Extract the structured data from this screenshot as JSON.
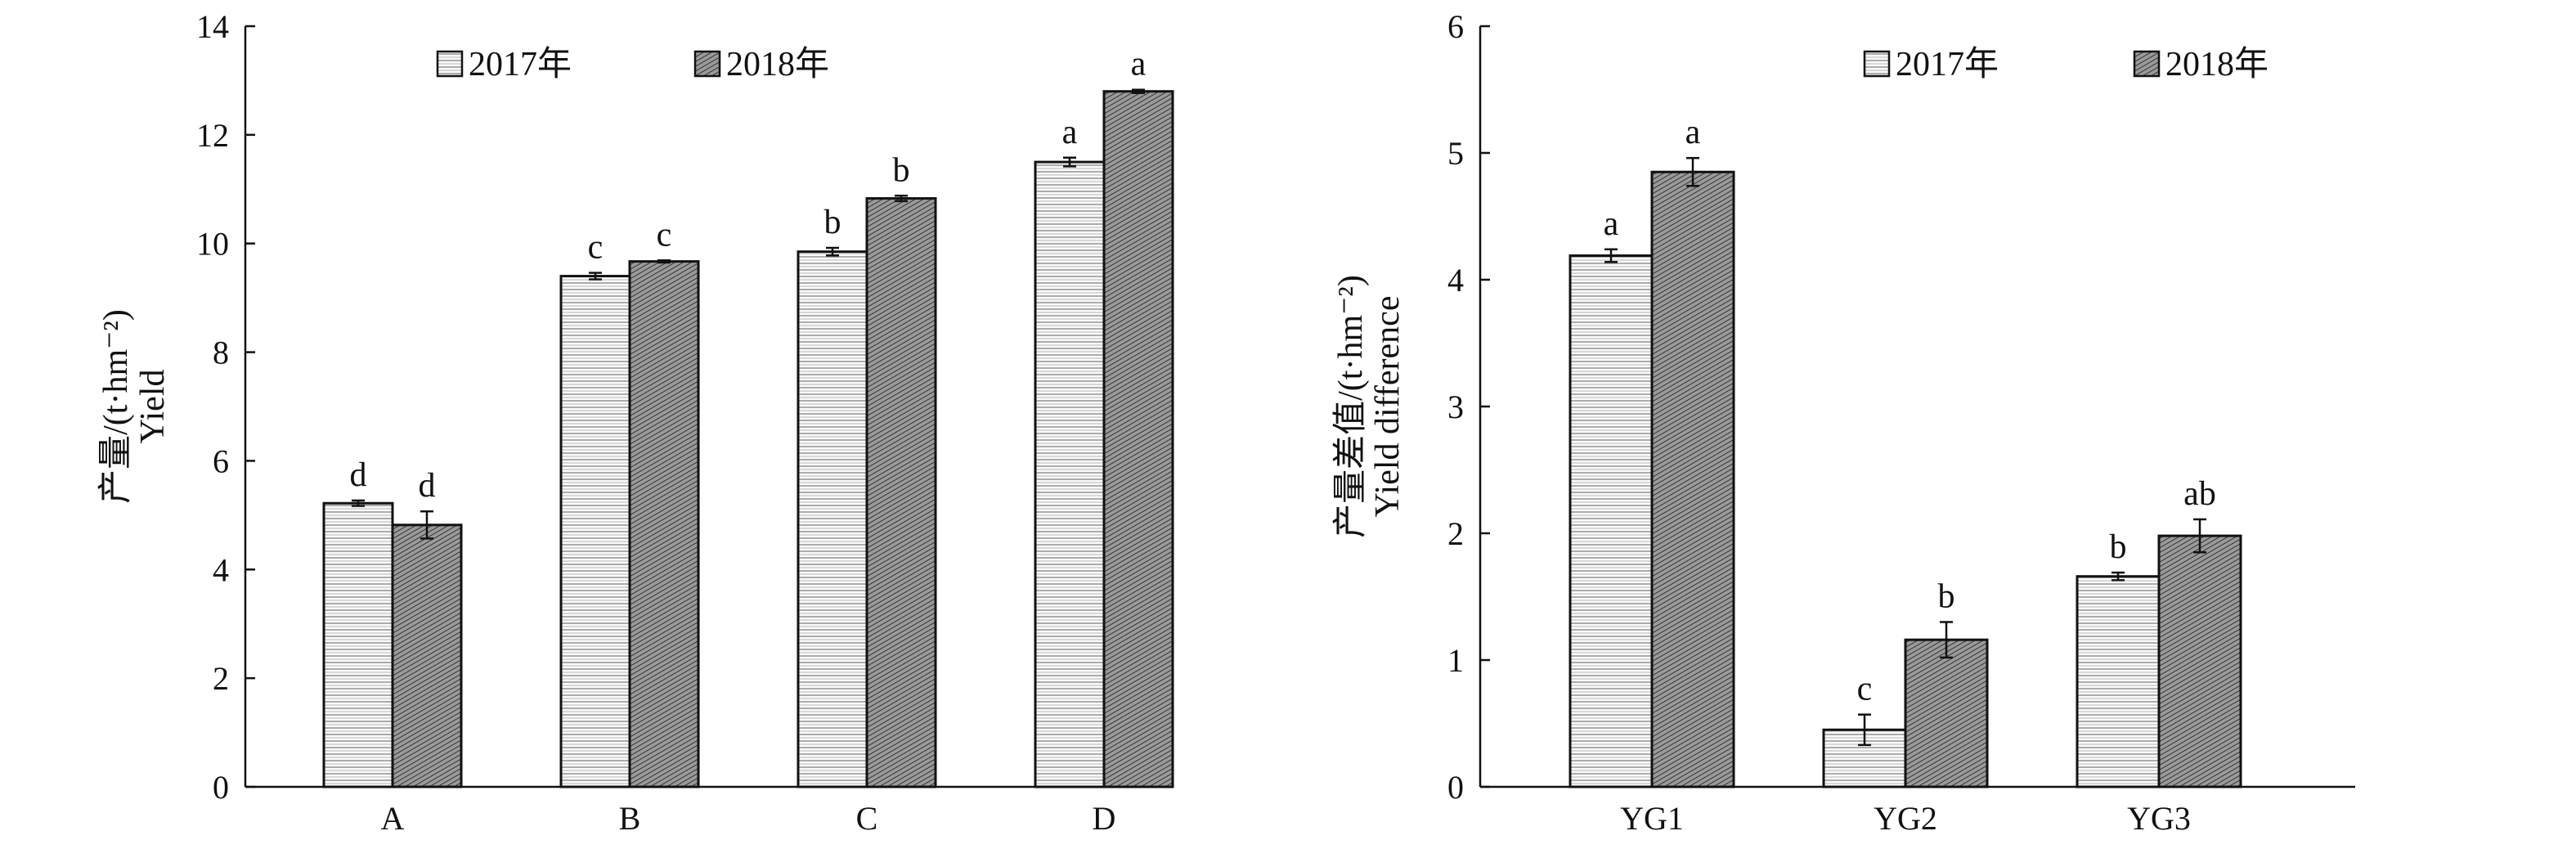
{
  "chart_data": [
    {
      "type": "bar",
      "categories": [
        "A",
        "B",
        "C",
        "D"
      ],
      "ylabel_cn": "产量/(t·hm⁻²)",
      "ylabel_en": "Yield",
      "ylim": [
        0,
        14
      ],
      "yticks": [
        0,
        2,
        4,
        6,
        8,
        10,
        12,
        14
      ],
      "legend": "top-center",
      "series": [
        {
          "name": "2017年",
          "values": [
            5.22,
            9.4,
            9.85,
            11.5
          ],
          "errors": [
            0.05,
            0.06,
            0.07,
            0.08
          ],
          "letters": [
            "d",
            "c",
            "b",
            "a"
          ]
        },
        {
          "name": "2018年",
          "values": [
            4.82,
            9.67,
            10.83,
            12.8
          ],
          "errors": [
            0.25,
            0.02,
            0.05,
            0.03
          ],
          "letters": [
            "d",
            "c",
            "b",
            "a"
          ]
        }
      ]
    },
    {
      "type": "bar",
      "categories": [
        "YG1",
        "YG2",
        "YG3"
      ],
      "ylabel_cn": "产量差值/(t·hm⁻²)",
      "ylabel_en": "Yield difference",
      "ylim": [
        0,
        6
      ],
      "yticks": [
        0,
        1,
        2,
        3,
        4,
        5,
        6
      ],
      "legend": "top-right",
      "series": [
        {
          "name": "2017年",
          "values": [
            4.19,
            0.45,
            1.66
          ],
          "errors": [
            0.05,
            0.12,
            0.03
          ],
          "letters": [
            "a",
            "c",
            "b"
          ]
        },
        {
          "name": "2018年",
          "values": [
            4.85,
            1.16,
            1.98
          ],
          "errors": [
            0.11,
            0.14,
            0.13
          ],
          "letters": [
            "a",
            "b",
            "ab"
          ]
        }
      ]
    }
  ]
}
